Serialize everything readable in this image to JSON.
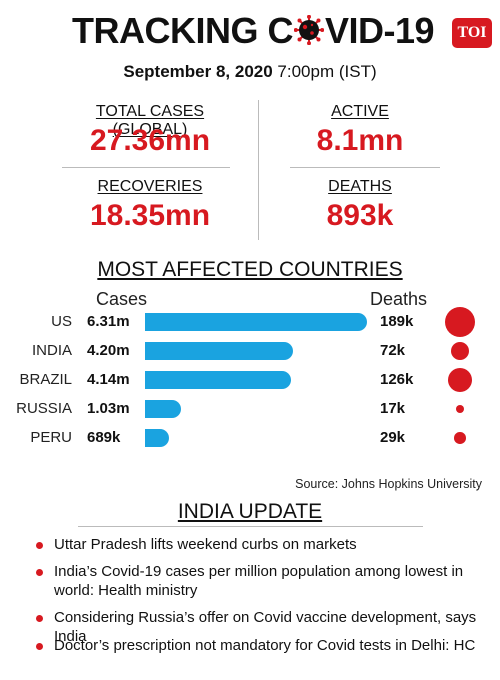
{
  "header": {
    "title_part1": "TRACKING C",
    "title_part2": "VID-19",
    "logo": "TOI",
    "date": "September 8, 2020",
    "time": "7:00pm (IST)"
  },
  "stats": {
    "total_label": "TOTAL CASES (GLOBAL)",
    "total_value": "27.36mn",
    "active_label": "ACTIVE",
    "active_value": "8.1mn",
    "recoveries_label": "RECOVERIES",
    "recoveries_value": "18.35mn",
    "deaths_label": "DEATHS",
    "deaths_value": "893k"
  },
  "countries_section": {
    "heading": "MOST AFFECTED COUNTRIES",
    "cases_header": "Cases",
    "deaths_header": "Deaths",
    "source": "Source: Johns Hopkins University"
  },
  "chart_data": {
    "type": "bar",
    "title": "MOST AFFECTED COUNTRIES",
    "categories": [
      "US",
      "INDIA",
      "BRAZIL",
      "RUSSIA",
      "PERU"
    ],
    "series": [
      {
        "name": "Cases",
        "values": [
          6.31,
          4.2,
          4.14,
          1.03,
          0.689
        ],
        "labels": [
          "6.31m",
          "4.20m",
          "4.14m",
          "1.03m",
          "689k"
        ]
      },
      {
        "name": "Deaths",
        "values": [
          189,
          72,
          126,
          17,
          29
        ],
        "labels": [
          "189k",
          "72k",
          "126k",
          "17k",
          "29k"
        ]
      }
    ],
    "colors": {
      "cases": "#1aa3e0",
      "deaths": "#d71920"
    }
  },
  "india_update": {
    "heading": "INDIA UPDATE",
    "items": [
      "Uttar Pradesh lifts weekend curbs on markets",
      "India’s Covid-19 cases per million population among lowest in world: Health ministry",
      "Considering Russia’s offer on Covid vaccine development, says India",
      "Doctor’s prescription not mandatory for Covid tests in Delhi: HC"
    ]
  },
  "colors": {
    "accent": "#d71920",
    "bar": "#1aa3e0"
  }
}
